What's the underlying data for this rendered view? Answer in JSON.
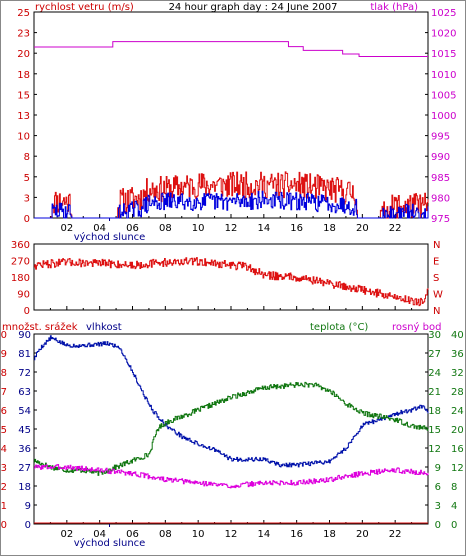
{
  "title": "24 hour graph day : 24 June 2007",
  "colors": {
    "wind": "#dd1111",
    "gust": "#0000dd",
    "pressure": "#cc00cc",
    "direction": "#dd1111",
    "rain": "#dd1111",
    "humidity": "#0011aa",
    "temperature": "#117711",
    "dewpoint": "#dd00dd",
    "sunrise_marker": "#000088"
  },
  "chart_data": [
    {
      "type": "line",
      "left_axis_label": "rychlost vetru (m/s)",
      "right_axis_label": "tlak (hPa)",
      "x_ticks": [
        "02",
        "04",
        "06",
        "08",
        "10",
        "12",
        "14",
        "16",
        "18",
        "20",
        "22"
      ],
      "sunrise_label": "východ slunce",
      "y_left_ticks": [
        "0",
        "3",
        "5",
        "8",
        "10",
        "13",
        "15",
        "18",
        "20",
        "23",
        "25"
      ],
      "y_left_range": [
        0,
        25
      ],
      "y_right_ticks": [
        "975",
        "980",
        "985",
        "990",
        "995",
        "1000",
        "1005",
        "1010",
        "1015",
        "1020",
        "1025"
      ],
      "y_right_range": [
        975,
        1025
      ],
      "series": [
        {
          "key": "pressure",
          "axis": "right",
          "step": true,
          "x": [
            0,
            4.8,
            15.5,
            16.4,
            18.8,
            19.8,
            24
          ],
          "y": [
            1016.5,
            1017.8,
            1016.6,
            1015.7,
            1014.8,
            1014.2,
            1014.2
          ]
        },
        {
          "key": "wind",
          "axis": "left",
          "noisy": true,
          "seed": 11,
          "x": [
            0,
            1.0,
            1.1,
            2.2,
            2.3,
            5.0,
            5.2,
            6.5,
            7.0,
            8.0,
            10.0,
            12.0,
            14.0,
            16.0,
            18.0,
            19.6,
            19.7,
            21.0,
            22.0,
            24.0
          ],
          "y": [
            0,
            0,
            2,
            2,
            0,
            0,
            2,
            2.5,
            3.5,
            3.5,
            4,
            4,
            4,
            4,
            3.5,
            3,
            0,
            0,
            1.5,
            1.5
          ]
        },
        {
          "key": "gust",
          "axis": "left",
          "noisy": true,
          "seed": 29,
          "x": [
            0,
            1.0,
            1.1,
            2.2,
            2.3,
            5.0,
            5.2,
            6.5,
            7.0,
            8.0,
            10.0,
            12.0,
            14.0,
            16.0,
            18.0,
            19.6,
            19.7,
            21.0,
            22.0,
            24.0
          ],
          "y": [
            0,
            0,
            0.8,
            0.8,
            0,
            0,
            0.6,
            1.2,
            1.8,
            2,
            2,
            2,
            2.2,
            2,
            1.8,
            1.4,
            0,
            0,
            0.6,
            0.6
          ]
        }
      ]
    },
    {
      "type": "line",
      "left_axis_label": "",
      "y_left_ticks": [
        "0",
        "90",
        "180",
        "270",
        "360"
      ],
      "y_left_range": [
        0,
        360
      ],
      "y_right_ticks": [
        "N",
        "W",
        "S",
        "E",
        "N"
      ],
      "series": [
        {
          "key": "direction",
          "axis": "left",
          "noisy": true,
          "seed": 47,
          "x": [
            0,
            2,
            4,
            6,
            8,
            10,
            12,
            13,
            14,
            16,
            18,
            20,
            22,
            23.7,
            24
          ],
          "y": [
            245,
            260,
            255,
            245,
            260,
            265,
            245,
            235,
            190,
            180,
            145,
            110,
            70,
            40,
            120
          ]
        }
      ]
    },
    {
      "type": "line",
      "left_axis_label": "množst. srážek",
      "left_axis_label2": "vlhkost",
      "mid_axis_label": "teplota (°C)",
      "right_axis_label": "rosný bod",
      "x_ticks": [
        "02",
        "04",
        "06",
        "08",
        "10",
        "12",
        "14",
        "16",
        "18",
        "20",
        "22"
      ],
      "sunrise_label": "východ slunce",
      "rain_ticks": [
        "0",
        "1",
        "2",
        "3",
        "4",
        "5",
        "6",
        "7",
        "8",
        "9",
        "10"
      ],
      "rain_range": [
        0,
        10
      ],
      "humidity_ticks": [
        "0",
        "9",
        "18",
        "27",
        "36",
        "45",
        "54",
        "63",
        "72",
        "81",
        "90"
      ],
      "humidity_range": [
        0,
        100
      ],
      "temp_ticks": [
        "0",
        "3",
        "6",
        "9",
        "12",
        "15",
        "18",
        "21",
        "24",
        "27",
        "30"
      ],
      "temp_range": [
        0,
        30
      ],
      "temp_right_ticks": [
        "0",
        "4",
        "8",
        "12",
        "16",
        "20",
        "24",
        "28",
        "32",
        "36",
        "40"
      ],
      "series": [
        {
          "key": "rain",
          "axis": "rain",
          "x": [
            0,
            24
          ],
          "y": [
            0,
            0
          ]
        },
        {
          "key": "humidity",
          "axis": "humidity",
          "noisy": true,
          "seed": 5,
          "x": [
            0,
            0.3,
            1.0,
            2.0,
            3.0,
            4.5,
            5.2,
            6.0,
            6.8,
            7.2,
            8.0,
            9.0,
            10.0,
            11.0,
            12.0,
            14.0,
            15.0,
            16.0,
            17.0,
            18.0,
            19.0,
            20.0,
            21.0,
            22.0,
            23.0,
            23.7,
            24.0
          ],
          "y": [
            87,
            92,
            98,
            94,
            94,
            95,
            93,
            80,
            66,
            60,
            52,
            46,
            42,
            39,
            34,
            34,
            31,
            31,
            32,
            33,
            40,
            52,
            55,
            58,
            60,
            62,
            58
          ]
        },
        {
          "key": "temperature",
          "axis": "temp",
          "noisy": true,
          "seed": 17,
          "x": [
            0,
            1,
            2,
            3,
            4,
            5,
            6,
            7,
            7.5,
            8,
            9,
            10,
            11,
            12,
            14,
            16,
            17,
            18,
            19,
            20,
            21,
            22,
            23,
            24
          ],
          "y": [
            10,
            9,
            8.5,
            8.5,
            8,
            9,
            10,
            11,
            15,
            16,
            17,
            18,
            19,
            20,
            21.5,
            22,
            22,
            21,
            19,
            17.5,
            17,
            16.5,
            15.5,
            15
          ]
        },
        {
          "key": "dewpoint",
          "axis": "temp",
          "noisy": true,
          "seed": 3,
          "x": [
            0,
            2,
            4,
            6,
            8,
            10,
            12,
            14,
            16,
            18,
            20,
            22,
            24
          ],
          "y": [
            9,
            9,
            8.5,
            8,
            7,
            6.5,
            6,
            6.5,
            6.5,
            7,
            8,
            8.5,
            8
          ]
        }
      ]
    }
  ]
}
